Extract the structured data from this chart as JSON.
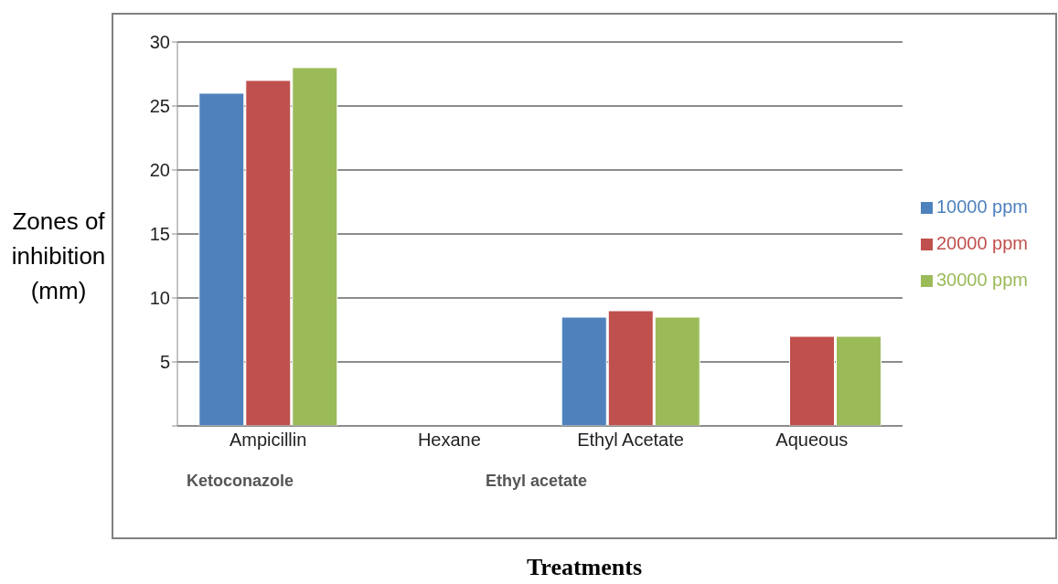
{
  "chart_data": {
    "type": "bar",
    "xlabel": "Treatments",
    "ylabel": "Zones of inhibition (mm)",
    "categories": [
      "Ampicillin",
      "Hexane",
      "Ethyl Acetate",
      "Aqueous"
    ],
    "series": [
      {
        "name": "10000 ppm",
        "color": "#4f81bd",
        "values": [
          26,
          0,
          8.5,
          0
        ]
      },
      {
        "name": "20000 ppm",
        "color": "#c0504d",
        "values": [
          27,
          0,
          9,
          7
        ]
      },
      {
        "name": "30000 ppm",
        "color": "#9bbb59",
        "values": [
          28,
          0,
          8.5,
          7
        ]
      }
    ],
    "ylim": [
      0,
      30
    ],
    "yticks": [
      {
        "value": 0,
        "label": null
      },
      5,
      10,
      15,
      20,
      25,
      30
    ],
    "grid": "y",
    "legend": "right",
    "annotations": [
      "Ketoconazole",
      "Ethyl acetate"
    ]
  }
}
